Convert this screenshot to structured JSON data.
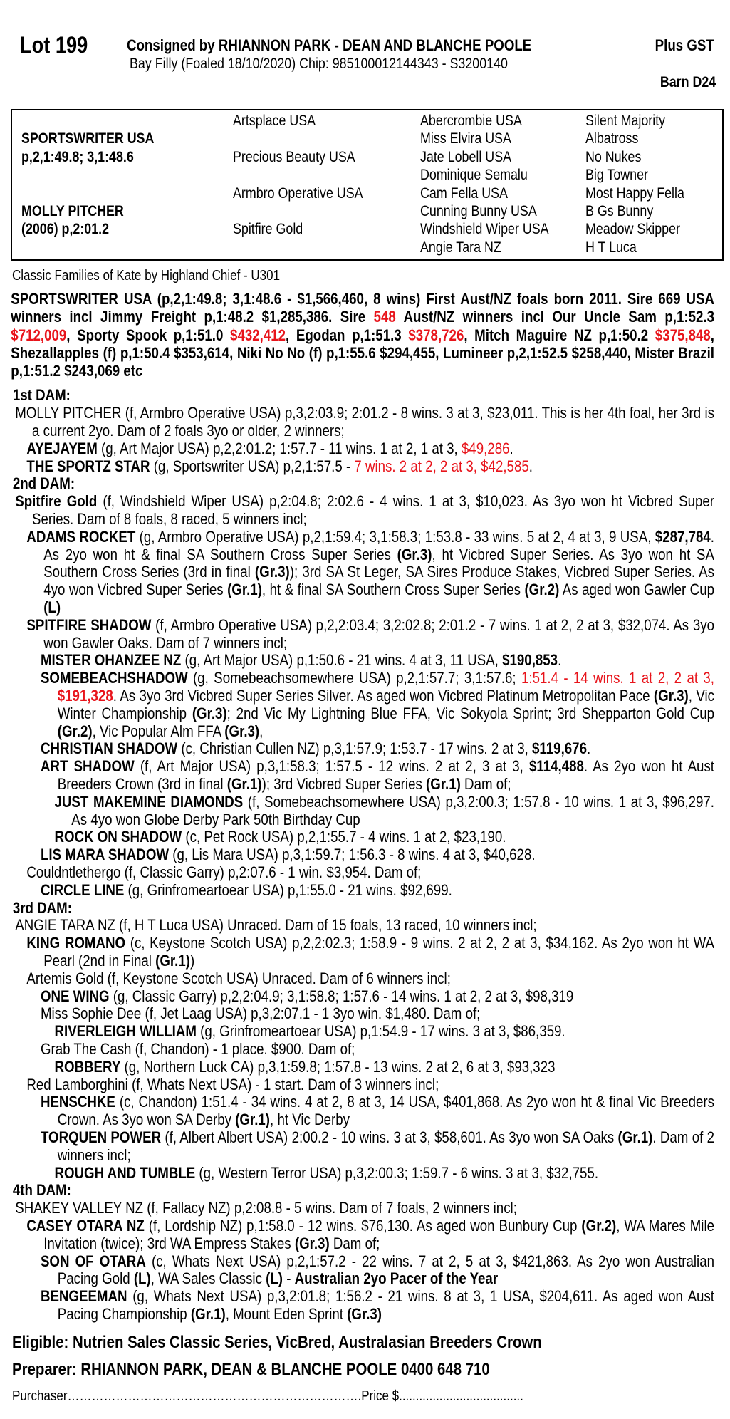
{
  "header": {
    "lot": "Lot 199",
    "consigned": "Consigned by RHIANNON PARK - DEAN AND BLANCHE POOLE",
    "gst": "Plus GST",
    "description": "Bay Filly (Foaled 18/10/2020) Chip: 985100012144343 - S3200140",
    "barn": "Barn D24"
  },
  "pedigree": {
    "sire": {
      "name": "SPORTSWRITER USA",
      "record": "p,2,1:49.8; 3,1:48.6"
    },
    "dam": {
      "name": "MOLLY PITCHER",
      "record": "(2006) p,2:01.2"
    },
    "col2": [
      "Artsplace USA",
      "Precious Beauty USA",
      "Armbro Operative USA",
      "Spitfire Gold"
    ],
    "col3": [
      "Abercrombie USA",
      "Miss Elvira USA",
      "Jate Lobell USA",
      "Dominique Semalu",
      "Cam Fella USA",
      "Cunning Bunny USA",
      "Windshield Wiper USA",
      "Angie Tara NZ"
    ],
    "col4": [
      "Silent Majority",
      "Albatross",
      "No Nukes",
      "Big Towner",
      "Most Happy Fella",
      "B Gs Bunny",
      "Meadow Skipper",
      "H T Luca"
    ]
  },
  "family": "Classic Families of Kate by Highland Chief - U301",
  "sire_para": [
    [
      "SPORTSWRITER USA (p,2,1:49.8; 3,1:48.6 - $1,566,460, 8 wins) First Aust/NZ foals born 2011. Sire 669 USA winners incl Jimmy Freight p,1:48.2 $1,285,386. Sire ",
      "b"
    ],
    [
      "548",
      "rb"
    ],
    [
      " Aust/NZ winners incl Our Uncle Sam p,1:52.3 ",
      "b"
    ],
    [
      "$712,009",
      "rb"
    ],
    [
      ", Sporty Spook p,1:51.0 ",
      "b"
    ],
    [
      "$432,412",
      "rb"
    ],
    [
      ", Egodan p,1:51.3 ",
      "b"
    ],
    [
      "$378,726",
      "rb"
    ],
    [
      ", Mitch Maguire NZ p,1:50.2 ",
      "b"
    ],
    [
      "$375,848",
      "rb"
    ],
    [
      ", Shezallapples (f) p,1:50.4 $353,614, Niki No No (f) p,1:55.6 $294,455, Lumineer p,2,1:52.5 $258,440, Mister Brazil p,1:51.2 $243,069 etc",
      "b"
    ]
  ],
  "dams": [
    {
      "label": "1st DAM:",
      "entries": [
        {
          "level": 0,
          "segs": [
            [
              "MOLLY PITCHER (f, Armbro Operative USA) p,3,2:03.9; 2:01.2 - 8 wins. 3 at 3, $23,011. This is her 4th foal, her 3rd is a current 2yo. Dam of 2 foals 3yo or older, 2 winners;"
            ]
          ]
        },
        {
          "level": 1,
          "segs": [
            [
              "AYEJAYEM",
              "b"
            ],
            [
              " (g, Art Major USA) p,2,2:01.2; 1:57.7 - 11 wins. 1 at 2, 1 at 3, "
            ],
            [
              "$49,286",
              "r"
            ],
            [
              "."
            ]
          ]
        },
        {
          "level": 1,
          "segs": [
            [
              "THE SPORTZ STAR",
              "b"
            ],
            [
              " (g, Sportswriter USA) p,2,1:57.5 - "
            ],
            [
              "7 wins. 2 at 2, 2 at 3, $42,585",
              "r"
            ],
            [
              "."
            ]
          ]
        }
      ]
    },
    {
      "label": "2nd DAM:",
      "entries": [
        {
          "level": 0,
          "segs": [
            [
              "Spitfire Gold",
              "b"
            ],
            [
              " (f, Windshield Wiper USA) p,2:04.8; 2:02.6 - 4 wins. 1 at 3, $10,023. As 3yo won ht Vicbred Super Series. Dam of 8 foals, 8 raced, 5 winners incl;"
            ]
          ]
        },
        {
          "level": 1,
          "segs": [
            [
              "ADAMS ROCKET",
              "b"
            ],
            [
              " (g, Armbro Operative USA) p,2,1:59.4; 3,1:58.3; 1:53.8 - 33 wins. 5 at 2, 4 at 3, 9 USA, "
            ],
            [
              "$287,784",
              "b"
            ],
            [
              ". As 2yo won ht & final SA Southern Cross Super Series "
            ],
            [
              "(Gr.3)",
              "b"
            ],
            [
              ", ht Vicbred Super Series. As 3yo won ht SA Southern Cross Series (3rd in final "
            ],
            [
              "(Gr.3)",
              "b"
            ],
            [
              "); 3rd SA St Leger, SA Sires Produce Stakes, Vicbred Super Series. As 4yo won Vicbred Super Series "
            ],
            [
              "(Gr.1)",
              "b"
            ],
            [
              ", ht & final SA Southern Cross Super Series "
            ],
            [
              "(Gr.2)",
              "b"
            ],
            [
              " As aged won Gawler Cup "
            ],
            [
              "(L)",
              "b"
            ]
          ]
        },
        {
          "level": 1,
          "segs": [
            [
              "SPITFIRE SHADOW",
              "b"
            ],
            [
              " (f, Armbro Operative USA) p,2,2:03.4; 3,2:02.8; 2:01.2 - 7 wins. 1 at 2, 2 at 3, $32,074. As 3yo won Gawler Oaks. Dam of 7 winners incl;"
            ]
          ]
        },
        {
          "level": 2,
          "segs": [
            [
              "MISTER OHANZEE NZ",
              "b"
            ],
            [
              " (g, Art Major USA) p,1:50.6 - 21 wins. 4 at 3, 11 USA, "
            ],
            [
              "$190,853",
              "b"
            ],
            [
              "."
            ]
          ]
        },
        {
          "level": 2,
          "segs": [
            [
              "SOMEBEACHSHADOW",
              "b"
            ],
            [
              " (g, Somebeachsomewhere USA) p,2,1:57.7; 3,1:57.6; "
            ],
            [
              "1:51.4 - 14 wins. 1 at 2, 2 at 3, ",
              "r"
            ],
            [
              "$191,328",
              "rb"
            ],
            [
              ". As 3yo 3rd Vicbred Super Series Silver. As aged won Vicbred Platinum Metropolitan Pace "
            ],
            [
              "(Gr.3)",
              "b"
            ],
            [
              ", Vic Winter Championship "
            ],
            [
              "(Gr.3)",
              "b"
            ],
            [
              "; 2nd Vic My Lightning Blue FFA, Vic Sokyola Sprint; 3rd Shepparton Gold Cup "
            ],
            [
              "(Gr.2)",
              "b"
            ],
            [
              ", Vic Popular Alm FFA "
            ],
            [
              "(Gr.3)",
              "b"
            ],
            [
              ","
            ]
          ]
        },
        {
          "level": 2,
          "segs": [
            [
              "CHRISTIAN SHADOW",
              "b"
            ],
            [
              " (c, Christian Cullen NZ) p,3,1:57.9; 1:53.7 - 17 wins. 2 at 3, "
            ],
            [
              "$119,676",
              "b"
            ],
            [
              "."
            ]
          ]
        },
        {
          "level": 2,
          "segs": [
            [
              "ART SHADOW",
              "b"
            ],
            [
              " (f, Art Major USA) p,3,1:58.3; 1:57.5 - 12 wins. 2 at 2, 3 at 3, "
            ],
            [
              "$114,488",
              "b"
            ],
            [
              ". As 2yo won ht Aust Breeders Crown (3rd in final "
            ],
            [
              "(Gr.1)",
              "b"
            ],
            [
              "); 3rd Vicbred Super Series "
            ],
            [
              "(Gr.1)",
              "b"
            ],
            [
              " Dam of;"
            ]
          ]
        },
        {
          "level": 3,
          "segs": [
            [
              "JUST MAKEMINE DIAMONDS",
              "b"
            ],
            [
              " (f, Somebeachsomewhere USA) p,3,2:00.3; 1:57.8 - 10 wins. 1 at 3, $96,297. As 4yo won Globe Derby Park 50th Birthday Cup"
            ]
          ]
        },
        {
          "level": 3,
          "segs": [
            [
              "ROCK ON SHADOW",
              "b"
            ],
            [
              " (c, Pet Rock USA) p,2,1:55.7 - 4 wins. 1 at 2, $23,190."
            ]
          ]
        },
        {
          "level": 2,
          "segs": [
            [
              "LIS MARA SHADOW",
              "b"
            ],
            [
              " (g, Lis Mara USA) p,3,1:59.7; 1:56.3 - 8 wins. 4 at 3, $40,628."
            ]
          ]
        },
        {
          "level": 1,
          "segs": [
            [
              "Couldntlethergo (f, Classic Garry) p,2:07.6 - 1 win. $3,954. Dam of;"
            ]
          ]
        },
        {
          "level": 2,
          "segs": [
            [
              "CIRCLE LINE",
              "b"
            ],
            [
              " (g, Grinfromeartoear USA) p,1:55.0 - 21 wins. $92,699."
            ]
          ]
        }
      ]
    },
    {
      "label": "3rd DAM:",
      "entries": [
        {
          "level": 0,
          "segs": [
            [
              "ANGIE TARA NZ (f, H T Luca USA) Unraced. Dam of 15 foals, 13 raced, 10 winners incl;"
            ]
          ]
        },
        {
          "level": 1,
          "segs": [
            [
              "KING ROMANO",
              "b"
            ],
            [
              " (c, Keystone Scotch USA) p,2,2:02.3; 1:58.9 - 9 wins. 2 at 2, 2 at 3, $34,162. As 2yo won ht WA Pearl (2nd in Final "
            ],
            [
              "(Gr.1)",
              "b"
            ],
            [
              ")"
            ]
          ]
        },
        {
          "level": 1,
          "segs": [
            [
              "Artemis Gold (f, Keystone Scotch USA) Unraced. Dam of 6 winners incl;"
            ]
          ]
        },
        {
          "level": 2,
          "segs": [
            [
              "ONE WING",
              "b"
            ],
            [
              " (g, Classic Garry) p,2,2:04.9; 3,1:58.8; 1:57.6 - 14 wins. 1 at 2, 2 at 3, $98,319"
            ]
          ]
        },
        {
          "level": 2,
          "segs": [
            [
              "Miss Sophie Dee (f, Jet Laag USA) p,3,2:07.1 - 1 3yo win. $1,480. Dam of;"
            ]
          ]
        },
        {
          "level": 3,
          "segs": [
            [
              "RIVERLEIGH WILLIAM",
              "b"
            ],
            [
              " (g, Grinfromeartoear USA) p,1:54.9 - 17 wins. 3 at 3, $86,359."
            ]
          ]
        },
        {
          "level": 2,
          "segs": [
            [
              "Grab The Cash (f, Chandon) - 1 place. $900. Dam of;"
            ]
          ]
        },
        {
          "level": 3,
          "segs": [
            [
              "ROBBERY",
              "b"
            ],
            [
              " (g, Northern Luck CA) p,3,1:59.8; 1:57.8 - 13 wins. 2 at 2, 6 at 3, $93,323"
            ]
          ]
        },
        {
          "level": 1,
          "segs": [
            [
              "Red Lamborghini (f, Whats Next USA) - 1 start. Dam of 3 winners incl;"
            ]
          ]
        },
        {
          "level": 2,
          "segs": [
            [
              "HENSCHKE",
              "b"
            ],
            [
              " (c, Chandon) 1:51.4 - 34 wins. 4 at 2, 8 at 3, 14 USA, $401,868. As 2yo won ht & final Vic Breeders Crown. As 3yo won SA Derby "
            ],
            [
              "(Gr.1)",
              "b"
            ],
            [
              ", ht Vic Derby"
            ]
          ]
        },
        {
          "level": 2,
          "segs": [
            [
              "TORQUEN POWER",
              "b"
            ],
            [
              " (f, Albert Albert USA) 2:00.2 - 10 wins. 3 at 3, $58,601. As 3yo won SA Oaks "
            ],
            [
              "(Gr.1)",
              "b"
            ],
            [
              ". Dam of 2 winners incl;"
            ]
          ]
        },
        {
          "level": 3,
          "segs": [
            [
              "ROUGH AND TUMBLE",
              "b"
            ],
            [
              " (g, Western Terror USA) p,3,2:00.3; 1:59.7 - 6 wins. 3 at 3, $32,755."
            ]
          ]
        }
      ]
    },
    {
      "label": "4th DAM:",
      "entries": [
        {
          "level": 0,
          "segs": [
            [
              "SHAKEY VALLEY NZ (f, Fallacy NZ) p,2:08.8 - 5 wins. Dam of 7 foals, 2 winners incl;"
            ]
          ]
        },
        {
          "level": 1,
          "segs": [
            [
              "CASEY OTARA NZ",
              "b"
            ],
            [
              " (f, Lordship NZ) p,1:58.0 - 12 wins. $76,130. As aged won Bunbury Cup "
            ],
            [
              "(Gr.2)",
              "b"
            ],
            [
              ", WA Mares Mile Invitation (twice); 3rd WA Empress Stakes "
            ],
            [
              "(Gr.3)",
              "b"
            ],
            [
              " Dam of;"
            ]
          ]
        },
        {
          "level": 2,
          "segs": [
            [
              "SON OF OTARA",
              "b"
            ],
            [
              " (c, Whats Next USA) p,2,1:57.2 - 22 wins. 7 at 2, 5 at 3, $421,863. As 2yo won Australian Pacing Gold "
            ],
            [
              "(L)",
              "b"
            ],
            [
              ", WA Sales Classic "
            ],
            [
              "(L)",
              "b"
            ],
            [
              " - "
            ],
            [
              "Australian 2yo Pacer of the Year",
              "b"
            ]
          ]
        },
        {
          "level": 2,
          "segs": [
            [
              "BENGEEMAN",
              "b"
            ],
            [
              " (g, Whats Next USA) p,3,2:01.8; 1:56.2 - 21 wins. 8 at 3, 1 USA, $204,611. As aged won Aust Pacing Championship "
            ],
            [
              "(Gr.1)",
              "b"
            ],
            [
              ", Mount Eden Sprint "
            ],
            [
              "(Gr.3)",
              "b"
            ]
          ]
        }
      ]
    }
  ],
  "footer": {
    "eligible": "Eligible: Nutrien Sales Classic Series, VicBred, Australasian Breeders Crown",
    "preparer": "Preparer: RHIANNON PARK, DEAN & BLANCHE POOLE 0400 648 710",
    "purchaser": "Purchaser……………………………………………………………….Price $....................................."
  },
  "colors": {
    "highlight": "#e8141b",
    "text": "#000000"
  }
}
